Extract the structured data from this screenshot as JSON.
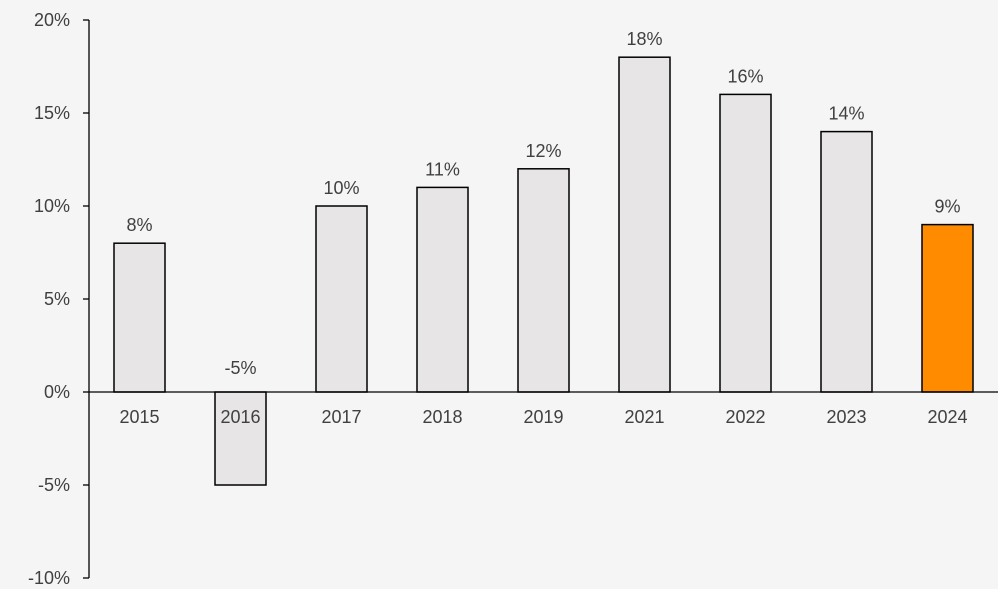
{
  "chart_data": {
    "type": "bar",
    "title": "",
    "xlabel": "",
    "ylabel": "",
    "categories": [
      "2015",
      "2016",
      "2017",
      "2018",
      "2019",
      "2021",
      "2022",
      "2023",
      "2024"
    ],
    "values": [
      8,
      -5,
      10,
      11,
      12,
      18,
      16,
      14,
      9
    ],
    "data_labels": [
      "8%",
      "-5%",
      "10%",
      "11%",
      "12%",
      "18%",
      "16%",
      "14%",
      "9%"
    ],
    "ylim": [
      -10,
      20
    ],
    "yticks": [
      -10,
      -5,
      0,
      5,
      10,
      15,
      20
    ],
    "ytick_labels": [
      "-10%",
      "-5%",
      "0%",
      "5%",
      "10%",
      "15%",
      "20%"
    ],
    "grid": false,
    "legend": "none",
    "colors": {
      "default_bar": "#e7e5e6",
      "highlight_bar": "#ff8c00",
      "bar_outline": "#000000",
      "background": "#f5f5f5",
      "text": "#404040"
    },
    "highlight_category": "2024"
  }
}
